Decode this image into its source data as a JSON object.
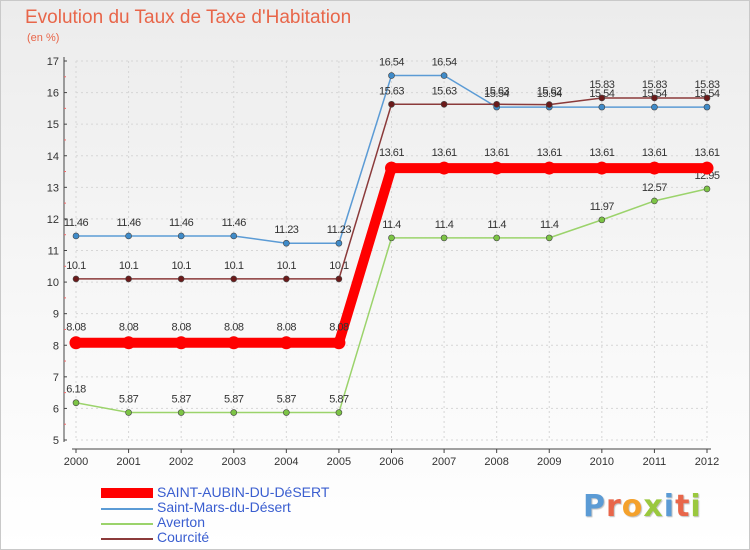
{
  "page": {
    "title": "Evolution du Taux de Taxe d'Habitation",
    "subtitle": "(en %)",
    "logo_text": "Proxiti",
    "logo_colors": [
      "#5b9bd5",
      "#e8664a",
      "#f4a12c",
      "#9ac83e",
      "#5b9bd5",
      "#e8664a",
      "#9ac83e"
    ]
  },
  "chart_data": {
    "type": "line",
    "title": "Evolution du Taux de Taxe d'Habitation",
    "subtitle": "(en %)",
    "xlabel": "",
    "ylabel": "",
    "ylim": [
      5,
      17
    ],
    "yticks": [
      "5",
      "6",
      "7",
      "8",
      "9",
      "10",
      "11",
      "12",
      "13",
      "14",
      "15",
      "16",
      "17"
    ],
    "grid": true,
    "legend_position": "bottom-left",
    "x": [
      "2000",
      "2001",
      "2002",
      "2003",
      "2004",
      "2005",
      "2006",
      "2007",
      "2008",
      "2009",
      "2010",
      "2011",
      "2012"
    ],
    "series": [
      {
        "name": "Saint-Mars-du-Désert",
        "color": "#5b9bd5",
        "marker": "#3f8bc9",
        "values": [
          11.46,
          11.46,
          11.46,
          11.46,
          11.23,
          11.23,
          16.54,
          16.54,
          15.54,
          15.54,
          15.54,
          15.54,
          15.54
        ],
        "labels": [
          "11.46",
          "11.46",
          "11.46",
          "11.46",
          "11.23",
          "11.23",
          "16.54",
          "16.54",
          "15.54",
          "15.54",
          "15.54",
          "15.54",
          "15.54"
        ]
      },
      {
        "name": "Courcité",
        "color": "#8b3a3a",
        "marker": "#6b1a1a",
        "values": [
          10.1,
          10.1,
          10.1,
          10.1,
          10.1,
          10.1,
          15.63,
          15.63,
          15.63,
          15.62,
          15.83,
          15.83,
          15.83
        ],
        "labels": [
          "10.1",
          "10.1",
          "10.1",
          "10.1",
          "10.1",
          "10.1",
          "15.63",
          "15.63",
          "15.63",
          "15.62",
          "15.83",
          "15.83",
          "15.83"
        ]
      },
      {
        "name": "Averton",
        "color": "#9bd36b",
        "marker": "#7cc445",
        "values": [
          6.18,
          5.87,
          5.87,
          5.87,
          5.87,
          5.87,
          11.4,
          11.4,
          11.4,
          11.4,
          11.97,
          12.57,
          12.95
        ],
        "labels": [
          "6.18",
          "5.87",
          "5.87",
          "5.87",
          "5.87",
          "5.87",
          "11.4",
          "11.4",
          "11.4",
          "11.4",
          "11.97",
          "12.57",
          "12.95"
        ]
      },
      {
        "name": "SAINT-AUBIN-DU-DéSERT",
        "color": "#ff0000",
        "marker": "#ff0000",
        "thick": true,
        "values": [
          8.08,
          8.08,
          8.08,
          8.08,
          8.08,
          8.08,
          13.61,
          13.61,
          13.61,
          13.61,
          13.61,
          13.61,
          13.61
        ],
        "labels": [
          "8.08",
          "8.08",
          "8.08",
          "8.08",
          "8.08",
          "8.08",
          "13.61",
          "13.61",
          "13.61",
          "13.61",
          "13.61",
          "13.61",
          "13.61"
        ]
      }
    ],
    "legend": [
      {
        "name": "SAINT-AUBIN-DU-DéSERT",
        "color": "#ff0000",
        "thick": true
      },
      {
        "name": "Saint-Mars-du-Désert",
        "color": "#5b9bd5",
        "thick": false
      },
      {
        "name": "Averton",
        "color": "#9bd36b",
        "thick": false
      },
      {
        "name": "Courcité",
        "color": "#8b3a3a",
        "thick": false
      }
    ]
  }
}
